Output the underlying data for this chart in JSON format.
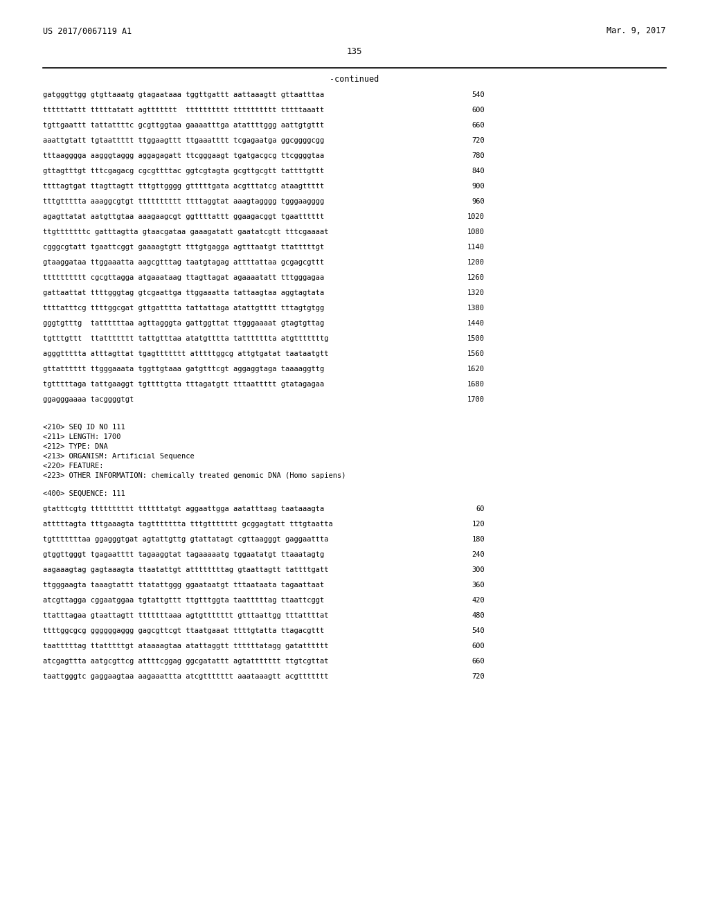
{
  "header_left": "US 2017/0067119 A1",
  "header_right": "Mar. 9, 2017",
  "page_number": "135",
  "continued_label": "-continued",
  "background_color": "#ffffff",
  "text_color": "#000000",
  "sequence_lines_1": [
    {
      "text": "gatgggttgg gtgttaaatg gtagaataaa tggttgattt aattaaagtt gttaatttaa",
      "num": "540"
    },
    {
      "text": "ttttttattt tttttatatt agttttttt  tttttttttt tttttttttt tttttaaatt",
      "num": "600"
    },
    {
      "text": "tgttgaattt tattattttc gcgttggtaa gaaaatttga atattttggg aattgtgttt",
      "num": "660"
    },
    {
      "text": "aaattgtatt tgtaattttt ttggaagttt ttgaaatttt tcgagaatga ggcggggcgg",
      "num": "720"
    },
    {
      "text": "tttaagggga aagggtaggg aggagagatt ttcgggaagt tgatgacgcg ttcggggtaa",
      "num": "780"
    },
    {
      "text": "gttagtttgt tttcgagacg cgcgttttac ggtcgtagta gcgttgcgtt tattttgttt",
      "num": "840"
    },
    {
      "text": "ttttagtgat ttagttagtt tttgttgggg gtttttgata acgtttatcg ataagttttt",
      "num": "900"
    },
    {
      "text": "tttgttttta aaaggcgtgt tttttttttt ttttaggtat aaagtagggg tgggaagggg",
      "num": "960"
    },
    {
      "text": "agagttatat aatgttgtaa aaagaagcgt ggttttattt ggaagacggt tgaatttttt",
      "num": "1020"
    },
    {
      "text": "ttgtttttttc gatttagtta gtaacgataa gaaagatatt gaatatcgtt tttcgaaaat",
      "num": "1080"
    },
    {
      "text": "cgggcgtatt tgaattcggt gaaaagtgtt tttgtgagga agtttaatgt ttatttttgt",
      "num": "1140"
    },
    {
      "text": "gtaaggataa ttggaaatta aagcgtttag taatgtagag attttattaa gcgagcgttt",
      "num": "1200"
    },
    {
      "text": "tttttttttt cgcgttagga atgaaataag ttagttagat agaaaatatt tttgggagaa",
      "num": "1260"
    },
    {
      "text": "gattaattat ttttgggtag gtcgaattga ttggaaatta tattaagtaa aggtagtata",
      "num": "1320"
    },
    {
      "text": "ttttatttcg ttttggcgat gttgatttta tattattaga atattgtttt tttagtgtgg",
      "num": "1380"
    },
    {
      "text": "gggtgtttg  tattttttaa agttagggta gattggttat ttgggaaaat gtagtgttag",
      "num": "1440"
    },
    {
      "text": "tgtttgttt  ttattttttt tattgtttaa atatgtttta tattttttta atgtttttttg",
      "num": "1500"
    },
    {
      "text": "agggttttta atttagttat tgagttttttt atttttggcg attgtgatat taataatgtt",
      "num": "1560"
    },
    {
      "text": "gttatttttt ttgggaaata tggttgtaaa gatgtttcgt aggaggtaga taaaaggttg",
      "num": "1620"
    },
    {
      "text": "tgtttttaga tattgaaggt tgttttgtta tttagatgtt tttaattttt gtatagagaa",
      "num": "1680"
    },
    {
      "text": "ggagggaaaa tacggggtgt",
      "num": "1700"
    }
  ],
  "metadata_lines": [
    "<210> SEQ ID NO 111",
    "<211> LENGTH: 1700",
    "<212> TYPE: DNA",
    "<213> ORGANISM: Artificial Sequence",
    "<220> FEATURE:",
    "<223> OTHER INFORMATION: chemically treated genomic DNA (Homo sapiens)"
  ],
  "sequence_label": "<400> SEQUENCE: 111",
  "sequence_lines_2": [
    {
      "text": "gtatttcgtg tttttttttt ttttttatgt aggaattgga aatatttaag taataaagta",
      "num": "60"
    },
    {
      "text": "atttttagta tttgaaagta tagttttttta tttgttttttt gcggagtatt tttgtaatta",
      "num": "120"
    },
    {
      "text": "tgtttttttaa ggagggtgat agtattgttg gtattatagt cgttaagggt gaggaattta",
      "num": "180"
    },
    {
      "text": "gtggttgggt tgagaatttt tagaaggtat tagaaaaatg tggaatatgt ttaaatagtg",
      "num": "240"
    },
    {
      "text": "aagaaagtag gagtaaagta ttaatattgt attttttttag gtaattagtt tattttgatt",
      "num": "300"
    },
    {
      "text": "ttgggaagta taaagtattt ttatattggg ggaataatgt tttaataata tagaattaat",
      "num": "360"
    },
    {
      "text": "atcgttagga cggaatggaa tgtattgttt ttgtttggta taatttttag ttaattcggt",
      "num": "420"
    },
    {
      "text": "ttatttagaa gtaattagtt tttttttaaa agtgttttttt gtttaattgg tttattttat",
      "num": "480"
    },
    {
      "text": "ttttggcgcg ggggggaggg gagcgttcgt ttaatgaaat ttttgtatta ttagacgttt",
      "num": "540"
    },
    {
      "text": "taatttttag ttatttttgt ataaaagtaa atattaggtt ttttttatagg gatatttttt",
      "num": "600"
    },
    {
      "text": "atcgagttta aatgcgttcg attttcggag ggcgatattt agtattttttt ttgtcgttat",
      "num": "660"
    },
    {
      "text": "taattgggtc gaggaagtaa aagaaattta atcgttttttt aaataaagtt acgttttttt",
      "num": "720"
    }
  ]
}
